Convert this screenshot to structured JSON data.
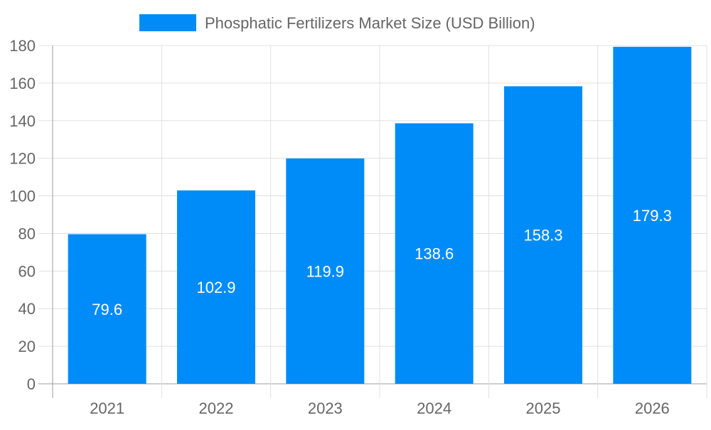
{
  "chart_data": {
    "type": "bar",
    "categories": [
      "2021",
      "2022",
      "2023",
      "2024",
      "2025",
      "2026"
    ],
    "series": [
      {
        "name": "Phosphatic Fertilizers Market Size (USD Billion)",
        "values": [
          79.6,
          102.9,
          119.9,
          138.6,
          158.3,
          179.3
        ]
      }
    ],
    "data_labels": [
      "79.6",
      "102.9",
      "119.9",
      "138.6",
      "158.3",
      "179.3"
    ],
    "yticks": [
      "0",
      "20",
      "40",
      "60",
      "80",
      "100",
      "120",
      "140",
      "160",
      "180"
    ],
    "ylim": [
      0,
      180
    ],
    "grid": true,
    "legend_position": "top",
    "colors": {
      "bar": "#008cf8",
      "grid": "#e0e0e0",
      "axis": "#9e9e9e",
      "text": "#666666",
      "label": "#ffffff"
    }
  }
}
